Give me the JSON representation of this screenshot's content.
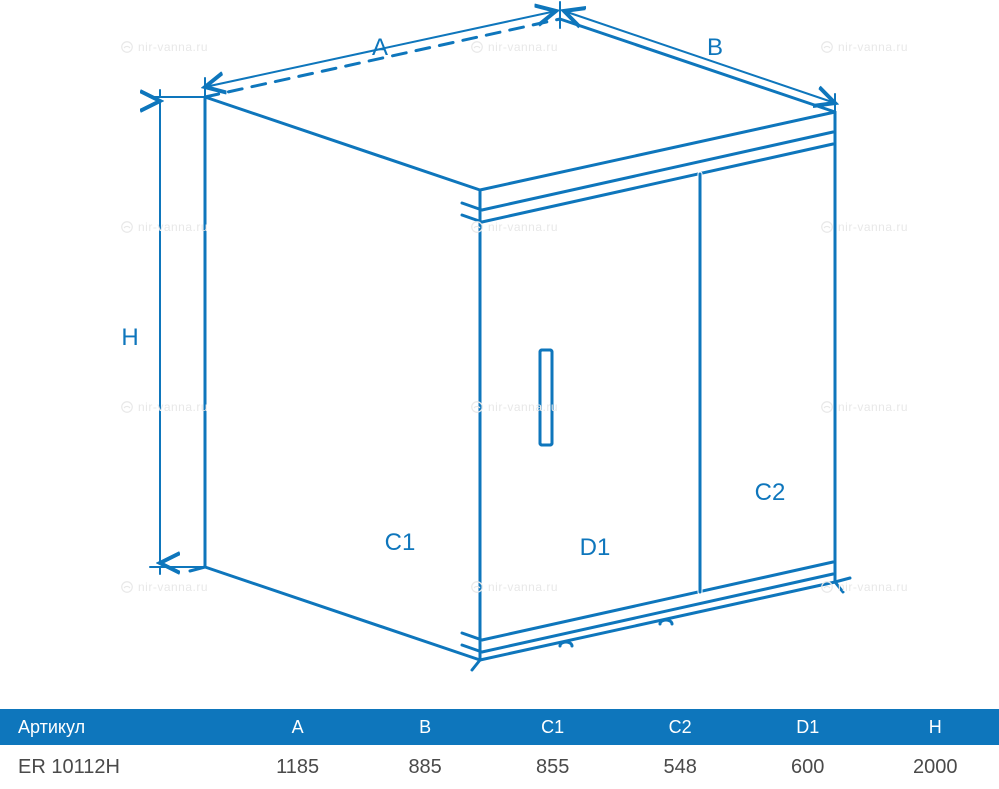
{
  "colors": {
    "stroke": "#0e76bc",
    "stroke_width": 3,
    "header_bg": "#0e76bc",
    "header_fg": "#ffffff",
    "data_fg": "#4a4a4a",
    "watermark": "#e8e8e8"
  },
  "diagram": {
    "labels": {
      "A": "A",
      "B": "B",
      "H": "H",
      "C1": "C1",
      "C2": "C2",
      "D1": "D1"
    },
    "label_fontsize": 24,
    "arrow_size": 10,
    "dash_pattern": "14 10"
  },
  "table": {
    "headers": [
      "Артикул",
      "A",
      "B",
      "C1",
      "C2",
      "D1",
      "H"
    ],
    "row": [
      "ER 10112H",
      "1185",
      "885",
      "855",
      "548",
      "600",
      "2000"
    ]
  },
  "watermark_text": "nir-vanna.ru"
}
